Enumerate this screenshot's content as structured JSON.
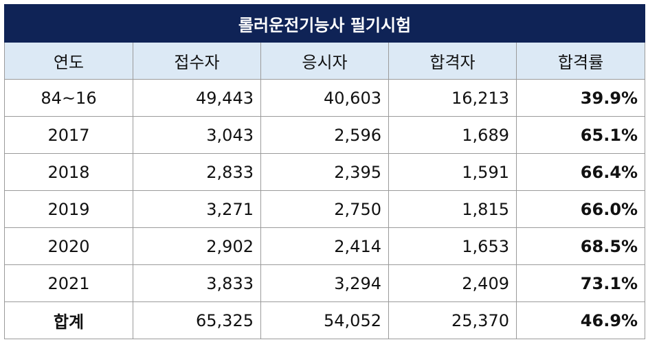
{
  "title": "롤러운전기능사 필기시험",
  "headers": [
    "연도",
    "접수자",
    "응시자",
    "합격자",
    "합격률"
  ],
  "rows": [
    {
      "year": "84~16",
      "applicants": "49,443",
      "examinees": "40,603",
      "passers": "16,213",
      "rate": "39.9%"
    },
    {
      "year": "2017",
      "applicants": "3,043",
      "examinees": "2,596",
      "passers": "1,689",
      "rate": "65.1%"
    },
    {
      "year": "2018",
      "applicants": "2,833",
      "examinees": "2,395",
      "passers": "1,591",
      "rate": "66.4%"
    },
    {
      "year": "2019",
      "applicants": "3,271",
      "examinees": "2,750",
      "passers": "1,815",
      "rate": "66.0%"
    },
    {
      "year": "2020",
      "applicants": "2,902",
      "examinees": "2,414",
      "passers": "1,653",
      "rate": "68.5%"
    },
    {
      "year": "2021",
      "applicants": "3,833",
      "examinees": "3,294",
      "passers": "2,409",
      "rate": "73.1%"
    }
  ],
  "total": {
    "label": "합계",
    "applicants": "65,325",
    "examinees": "54,052",
    "passers": "25,370",
    "rate": "46.9%"
  },
  "colors": {
    "title_bg": "#0f2356",
    "header_bg": "#dce9f5",
    "border": "#9a9a9a"
  }
}
